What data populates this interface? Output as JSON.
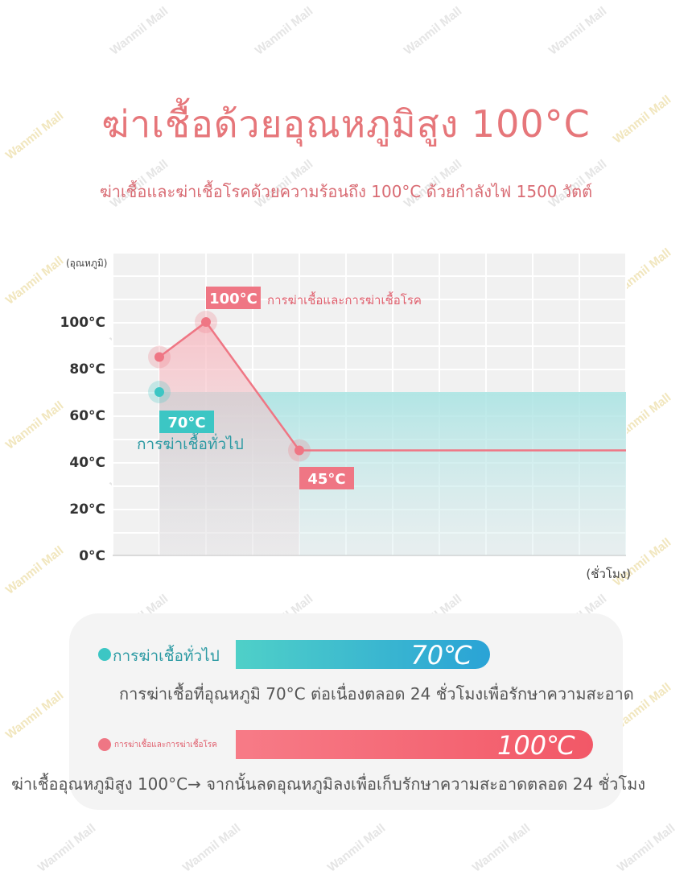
{
  "header": {
    "title": "ฆ่าเชื้อด้วยอุณหภูมิสูง 100°C",
    "subtitle": "ฆ่าเชื้อและฆ่าเชื้อโรคด้วยความร้อนถึง 100°C ด้วยกำลังไฟ 1500 วัตต์"
  },
  "watermark": "Wanmil Mall",
  "chart_data": {
    "type": "line",
    "ylabel": "(อุณหภูมิ)",
    "xlabel": "(ชั่วโมง)",
    "ylim": [
      0,
      120
    ],
    "yticks": [
      "0°C",
      "20°C",
      "40°C",
      "60°C",
      "80°C",
      "100°C"
    ],
    "grid": true,
    "colors": {
      "general": "#3cc6c4",
      "sterilize": "#ef7684"
    },
    "series": [
      {
        "name": "การฆ่าเชื้อทั่วไป",
        "points": [
          [
            1,
            70
          ],
          [
            11,
            70
          ]
        ]
      },
      {
        "name": "การฆ่าเชื้อและการฆ่าเชื้อโรค",
        "points": [
          [
            1,
            85
          ],
          [
            2,
            100
          ],
          [
            4,
            45
          ],
          [
            11,
            45
          ]
        ]
      }
    ],
    "annotations": [
      {
        "label": "100°C",
        "text": "การฆ่าเชื้อและการฆ่าเชื้อโรค",
        "x": 2,
        "y": 100
      },
      {
        "label": "70°C",
        "text": "การฆ่าเชื้อทั่วไป",
        "x": 1,
        "y": 70
      },
      {
        "label": "45°C",
        "text": "",
        "x": 4,
        "y": 45
      }
    ]
  },
  "comparison": {
    "general": {
      "label": "การฆ่าเชื้อทั่วไป",
      "value": "70℃",
      "description": "การฆ่าเชื้อที่อุณหภูมิ 70°C ต่อเนื่องตลอด 24 ชั่วโมงเพื่อรักษาความสะอาด"
    },
    "sterilize": {
      "label": "การฆ่าเชื้อและการฆ่าเชื้อโรค",
      "value": "100℃",
      "description": "ฆ่าเชื้ออุณหภูมิสูง 100°C→ จากนั้นลดอุณหภูมิลงเพื่อเก็บรักษาความสะอาดตลอด 24 ชั่วโมง"
    }
  }
}
